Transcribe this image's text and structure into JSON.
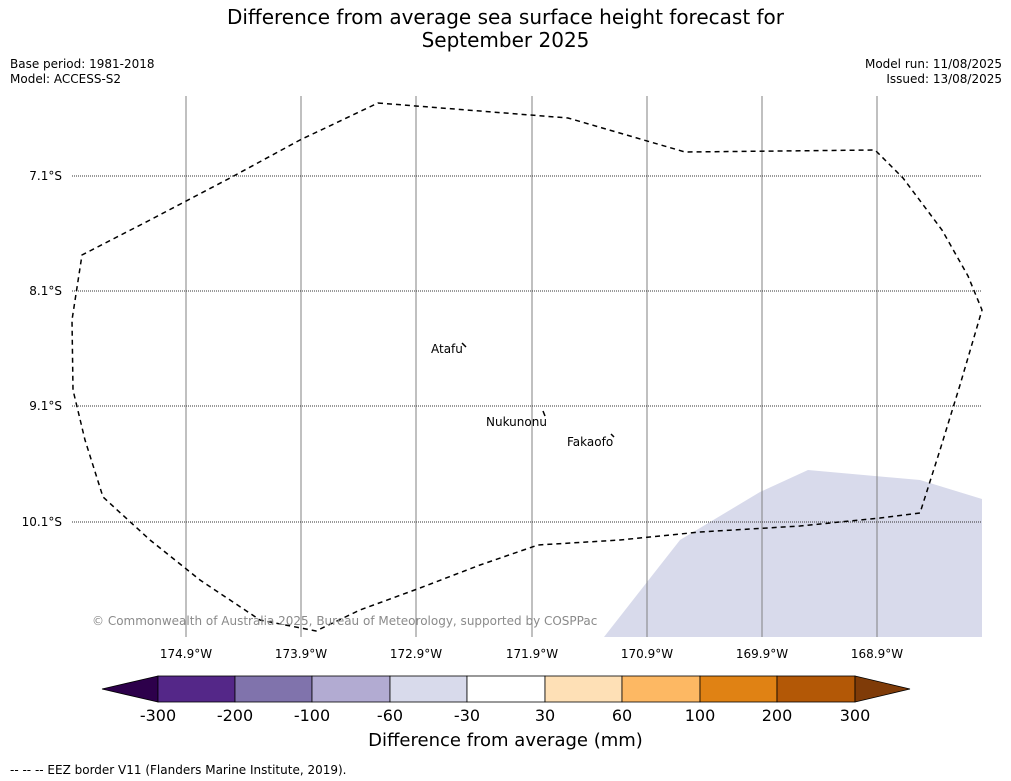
{
  "title_line1": "Difference from average sea surface height forecast for",
  "title_line2": "September 2025",
  "meta_left": [
    "Base period: 1981-2018",
    "Model: ACCESS-S2"
  ],
  "meta_right": [
    "Model run: 11/08/2025",
    "Issued: 13/08/2025"
  ],
  "lat_labels": [
    "7.1°S",
    "8.1°S",
    "9.1°S",
    "10.1°S"
  ],
  "lon_labels": [
    "174.9°W",
    "173.9°W",
    "172.9°W",
    "171.9°W",
    "170.9°W",
    "169.9°W",
    "168.9°W"
  ],
  "places": [
    "Atafu",
    "Nukunonu",
    "Fakaofo"
  ],
  "copyright": "© Commonwealth of Australia 2025, Bureau of Meteorology, supported by COSPPac",
  "colorbar": {
    "ticks": [
      "-300",
      "-200",
      "-100",
      "-60",
      "-30",
      "30",
      "60",
      "100",
      "200",
      "300"
    ],
    "colors": [
      "#2d004b",
      "#542788",
      "#8073ac",
      "#b2abd2",
      "#d8daeb",
      "#ffffff",
      "#fee0b6",
      "#fdb863",
      "#e08214",
      "#b35806",
      "#7f3b08"
    ],
    "label": "Difference from average (mm)"
  },
  "footer": "--  --  -- EEZ border V11 (Flanders Marine Institute, 2019)."
}
